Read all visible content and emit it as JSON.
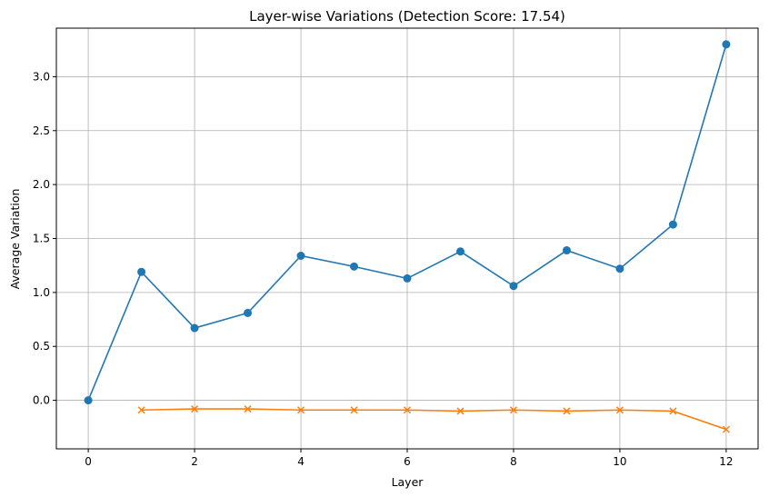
{
  "chart_data": {
    "type": "line",
    "title": "Layer-wise Variations (Detection Score: 17.54)",
    "xlabel": "Layer",
    "ylabel": "Average Variation",
    "xlim": [
      -0.6,
      12.6
    ],
    "ylim": [
      -0.45,
      3.45
    ],
    "xticks": [
      0,
      2,
      4,
      6,
      8,
      10,
      12
    ],
    "xtick_labels": [
      "0",
      "2",
      "4",
      "6",
      "8",
      "10",
      "12"
    ],
    "yticks": [
      0.0,
      0.5,
      1.0,
      1.5,
      2.0,
      2.5,
      3.0
    ],
    "ytick_labels": [
      "0.0",
      "0.5",
      "1.0",
      "1.5",
      "2.0",
      "2.5",
      "3.0"
    ],
    "grid": true,
    "series": [
      {
        "color": "#1f77b4",
        "marker": "circle",
        "x": [
          0,
          1,
          2,
          3,
          4,
          5,
          6,
          7,
          8,
          9,
          10,
          11,
          12
        ],
        "values": [
          0.0,
          1.19,
          0.67,
          0.81,
          1.34,
          1.24,
          1.13,
          1.38,
          1.06,
          1.39,
          1.22,
          1.63,
          3.3
        ]
      },
      {
        "color": "#ff7f0e",
        "marker": "x",
        "x": [
          1,
          2,
          3,
          4,
          5,
          6,
          7,
          8,
          9,
          10,
          11,
          12
        ],
        "values": [
          -0.09,
          -0.08,
          -0.08,
          -0.09,
          -0.09,
          -0.09,
          -0.1,
          -0.09,
          -0.1,
          -0.09,
          -0.1,
          -0.27
        ]
      }
    ]
  }
}
